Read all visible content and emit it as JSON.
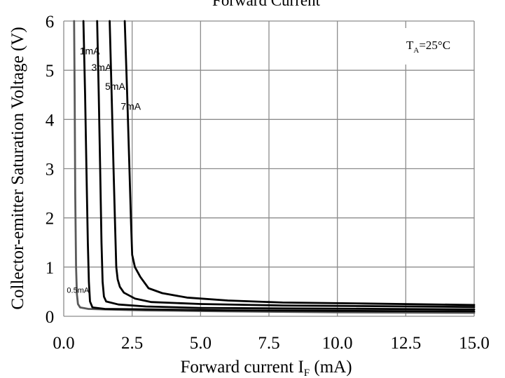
{
  "chart_data": {
    "type": "line",
    "title": "Forward Current",
    "xlabel_main": "Forward current I",
    "xlabel_sub": "F",
    "xlabel_unit": " (mA)",
    "ylabel": "Collector-emitter Saturation Voltage (V)",
    "xlim": [
      0,
      15
    ],
    "ylim": [
      0,
      6
    ],
    "x_ticks": [
      0,
      2.5,
      5,
      7.5,
      10,
      12.5,
      15
    ],
    "x_tick_labels": [
      "0.0",
      "2.5",
      "5.0",
      "7.5",
      "10.0",
      "12.5",
      "15.0"
    ],
    "y_ticks": [
      0,
      1,
      2,
      3,
      4,
      5,
      6
    ],
    "y_tick_labels": [
      "0",
      "1",
      "2",
      "3",
      "4",
      "5",
      "6"
    ],
    "grid": true,
    "annotation": {
      "main": "T",
      "sub": "A",
      "rest": "=25°C"
    },
    "series": [
      {
        "name": "0.5mA",
        "color": "#5a5a5a",
        "points": [
          [
            0.38,
            6.0
          ],
          [
            0.4,
            4.5
          ],
          [
            0.42,
            2.5
          ],
          [
            0.45,
            1.0
          ],
          [
            0.48,
            0.45
          ],
          [
            0.52,
            0.25
          ],
          [
            0.6,
            0.18
          ],
          [
            0.9,
            0.15
          ],
          [
            1.5,
            0.14
          ],
          [
            3,
            0.12
          ],
          [
            6,
            0.1
          ],
          [
            10,
            0.08
          ],
          [
            15,
            0.07
          ]
        ]
      },
      {
        "name": "1mA",
        "color": "#000000",
        "points": [
          [
            0.72,
            6.0
          ],
          [
            0.78,
            4.5
          ],
          [
            0.83,
            3.0
          ],
          [
            0.88,
            1.5
          ],
          [
            0.92,
            0.7
          ],
          [
            0.96,
            0.3
          ],
          [
            1.05,
            0.18
          ],
          [
            1.5,
            0.15
          ],
          [
            3,
            0.14
          ],
          [
            6,
            0.12
          ],
          [
            10,
            0.11
          ],
          [
            15,
            0.1
          ]
        ]
      },
      {
        "name": "3mA",
        "color": "#000000",
        "points": [
          [
            1.22,
            6.0
          ],
          [
            1.28,
            4.5
          ],
          [
            1.33,
            3.0
          ],
          [
            1.38,
            1.5
          ],
          [
            1.42,
            0.7
          ],
          [
            1.47,
            0.4
          ],
          [
            1.55,
            0.3
          ],
          [
            2.0,
            0.24
          ],
          [
            3,
            0.2
          ],
          [
            5,
            0.17
          ],
          [
            8,
            0.16
          ],
          [
            15,
            0.14
          ]
        ]
      },
      {
        "name": "5mA",
        "color": "#000000",
        "points": [
          [
            1.68,
            6.0
          ],
          [
            1.75,
            4.5
          ],
          [
            1.82,
            3.0
          ],
          [
            1.88,
            1.8
          ],
          [
            1.92,
            1.0
          ],
          [
            1.97,
            0.75
          ],
          [
            2.05,
            0.6
          ],
          [
            2.2,
            0.48
          ],
          [
            2.6,
            0.36
          ],
          [
            3.2,
            0.29
          ],
          [
            5,
            0.25
          ],
          [
            8,
            0.22
          ],
          [
            15,
            0.19
          ]
        ]
      },
      {
        "name": "7mA",
        "color": "#000000",
        "points": [
          [
            2.23,
            6.0
          ],
          [
            2.32,
            4.5
          ],
          [
            2.4,
            3.0
          ],
          [
            2.46,
            1.9
          ],
          [
            2.5,
            1.25
          ],
          [
            2.6,
            1.0
          ],
          [
            2.8,
            0.8
          ],
          [
            3.1,
            0.57
          ],
          [
            3.6,
            0.47
          ],
          [
            4.5,
            0.38
          ],
          [
            6,
            0.32
          ],
          [
            8,
            0.28
          ],
          [
            11,
            0.26
          ],
          [
            15,
            0.23
          ]
        ]
      }
    ],
    "series_labels": [
      {
        "text": "0.5mA",
        "x": 0.52,
        "y": 0.48,
        "size": 11
      },
      {
        "text": "1mA",
        "x": 0.95,
        "y": 5.32,
        "size": 14
      },
      {
        "text": "3mA",
        "x": 1.38,
        "y": 4.99,
        "size": 14
      },
      {
        "text": "5mA",
        "x": 1.88,
        "y": 4.6,
        "size": 14
      },
      {
        "text": "7mA",
        "x": 2.45,
        "y": 4.2,
        "size": 14
      }
    ]
  }
}
